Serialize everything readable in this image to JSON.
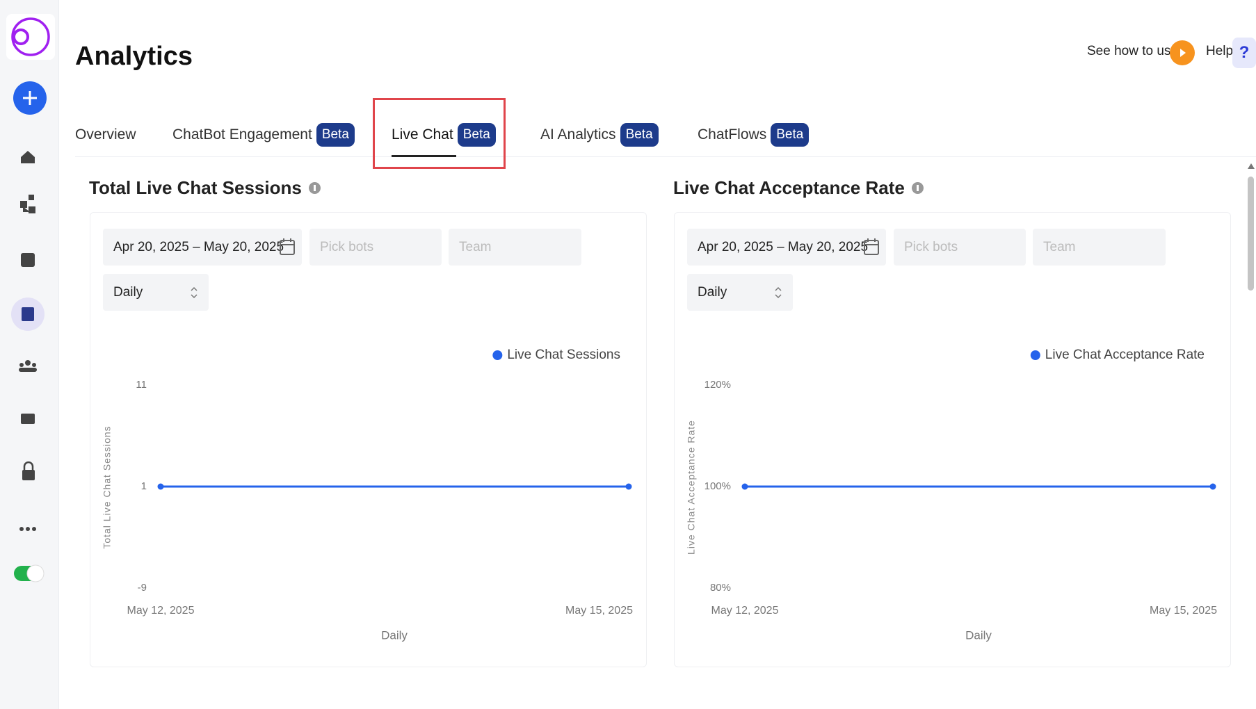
{
  "header": {
    "title": "Analytics",
    "see_how": "See how to use",
    "help": "Help",
    "help_icon": "?"
  },
  "tabs": [
    {
      "label": "Overview"
    },
    {
      "label": "ChatBot Engagement",
      "badge": "Beta"
    },
    {
      "label": "Live Chat",
      "badge": "Beta"
    },
    {
      "label": "AI Analytics",
      "badge": "Beta"
    },
    {
      "label": "ChatFlows",
      "badge": "Beta"
    }
  ],
  "filters": [
    {
      "date_range": "Apr 20, 2025 – May 20, 2025",
      "bots": "Pick bots",
      "team": "Team",
      "interval": "Daily"
    },
    {
      "date_range": "Apr 20, 2025 – May 20, 2025",
      "bots": "Pick bots",
      "team": "Team",
      "interval": "Daily"
    }
  ],
  "chart_data": [
    {
      "type": "line",
      "title": "Total Live Chat Sessions",
      "x": [
        "May 12, 2025",
        "May 15, 2025"
      ],
      "xlabel": "Daily",
      "ylabel": "Total Live Chat Sessions",
      "ylim": [
        -9,
        11
      ],
      "yticks": [
        -9,
        1,
        11
      ],
      "series": [
        {
          "name": "Live Chat Sessions",
          "color": "#2563eb",
          "values": [
            1,
            1
          ]
        }
      ]
    },
    {
      "type": "line",
      "title": "Live Chat Acceptance Rate",
      "x": [
        "May 12, 2025",
        "May 15, 2025"
      ],
      "xlabel": "Daily",
      "ylabel": "Live Chat Acceptance Rate",
      "ylim": [
        80,
        120
      ],
      "yticks": [
        {
          "value": 80,
          "label": "80%"
        },
        {
          "value": 100,
          "label": "100%"
        },
        {
          "value": 120,
          "label": "120%"
        }
      ],
      "series": [
        {
          "name": "Live Chat Acceptance Rate",
          "color": "#2563eb",
          "values": [
            100,
            100
          ]
        }
      ]
    }
  ]
}
